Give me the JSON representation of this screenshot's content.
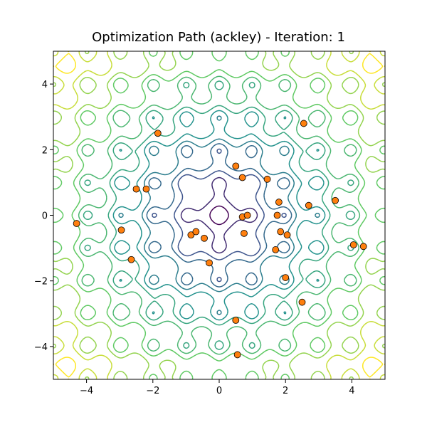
{
  "chart_data": {
    "type": "contour+scatter",
    "title": "Optimization Path (ackley) - Iteration: 1",
    "xlabel": "",
    "ylabel": "",
    "xlim": [
      -5,
      5
    ],
    "ylim": [
      -5,
      5
    ],
    "xticks": [
      -4,
      -2,
      0,
      2,
      4
    ],
    "yticks": [
      -4,
      -2,
      0,
      2,
      4
    ],
    "xtick_labels": [
      "−4",
      "−2",
      "0",
      "2",
      "4"
    ],
    "ytick_labels": [
      "−4",
      "−2",
      "0",
      "2",
      "4"
    ],
    "grid": false,
    "contour": {
      "function": "ackley",
      "levels": [
        2,
        3.5,
        5,
        6,
        7,
        8,
        9,
        10,
        11,
        12,
        13,
        14
      ],
      "colormap": "viridis"
    },
    "points": {
      "color": "#ff7f0e",
      "edgecolor": "#000000",
      "x": [
        -1.85,
        2.55,
        0.5,
        0.7,
        1.45,
        -2.5,
        -2.2,
        1.8,
        2.7,
        3.5,
        -4.3,
        0.7,
        0.85,
        1.75,
        -2.95,
        -0.85,
        -0.7,
        -0.45,
        0.75,
        1.85,
        2.05,
        4.05,
        4.35,
        1.7,
        -2.65,
        -0.3,
        2.0,
        2.5,
        0.5,
        0.55
      ],
      "y": [
        2.5,
        2.8,
        1.5,
        1.15,
        1.1,
        0.8,
        0.8,
        0.4,
        0.3,
        0.45,
        -0.25,
        -0.05,
        0.0,
        0.0,
        -0.45,
        -0.6,
        -0.5,
        -0.7,
        -0.55,
        -0.5,
        -0.6,
        -0.9,
        -0.95,
        -1.05,
        -1.35,
        -1.45,
        -1.9,
        -2.65,
        -3.2,
        -4.25
      ]
    }
  }
}
